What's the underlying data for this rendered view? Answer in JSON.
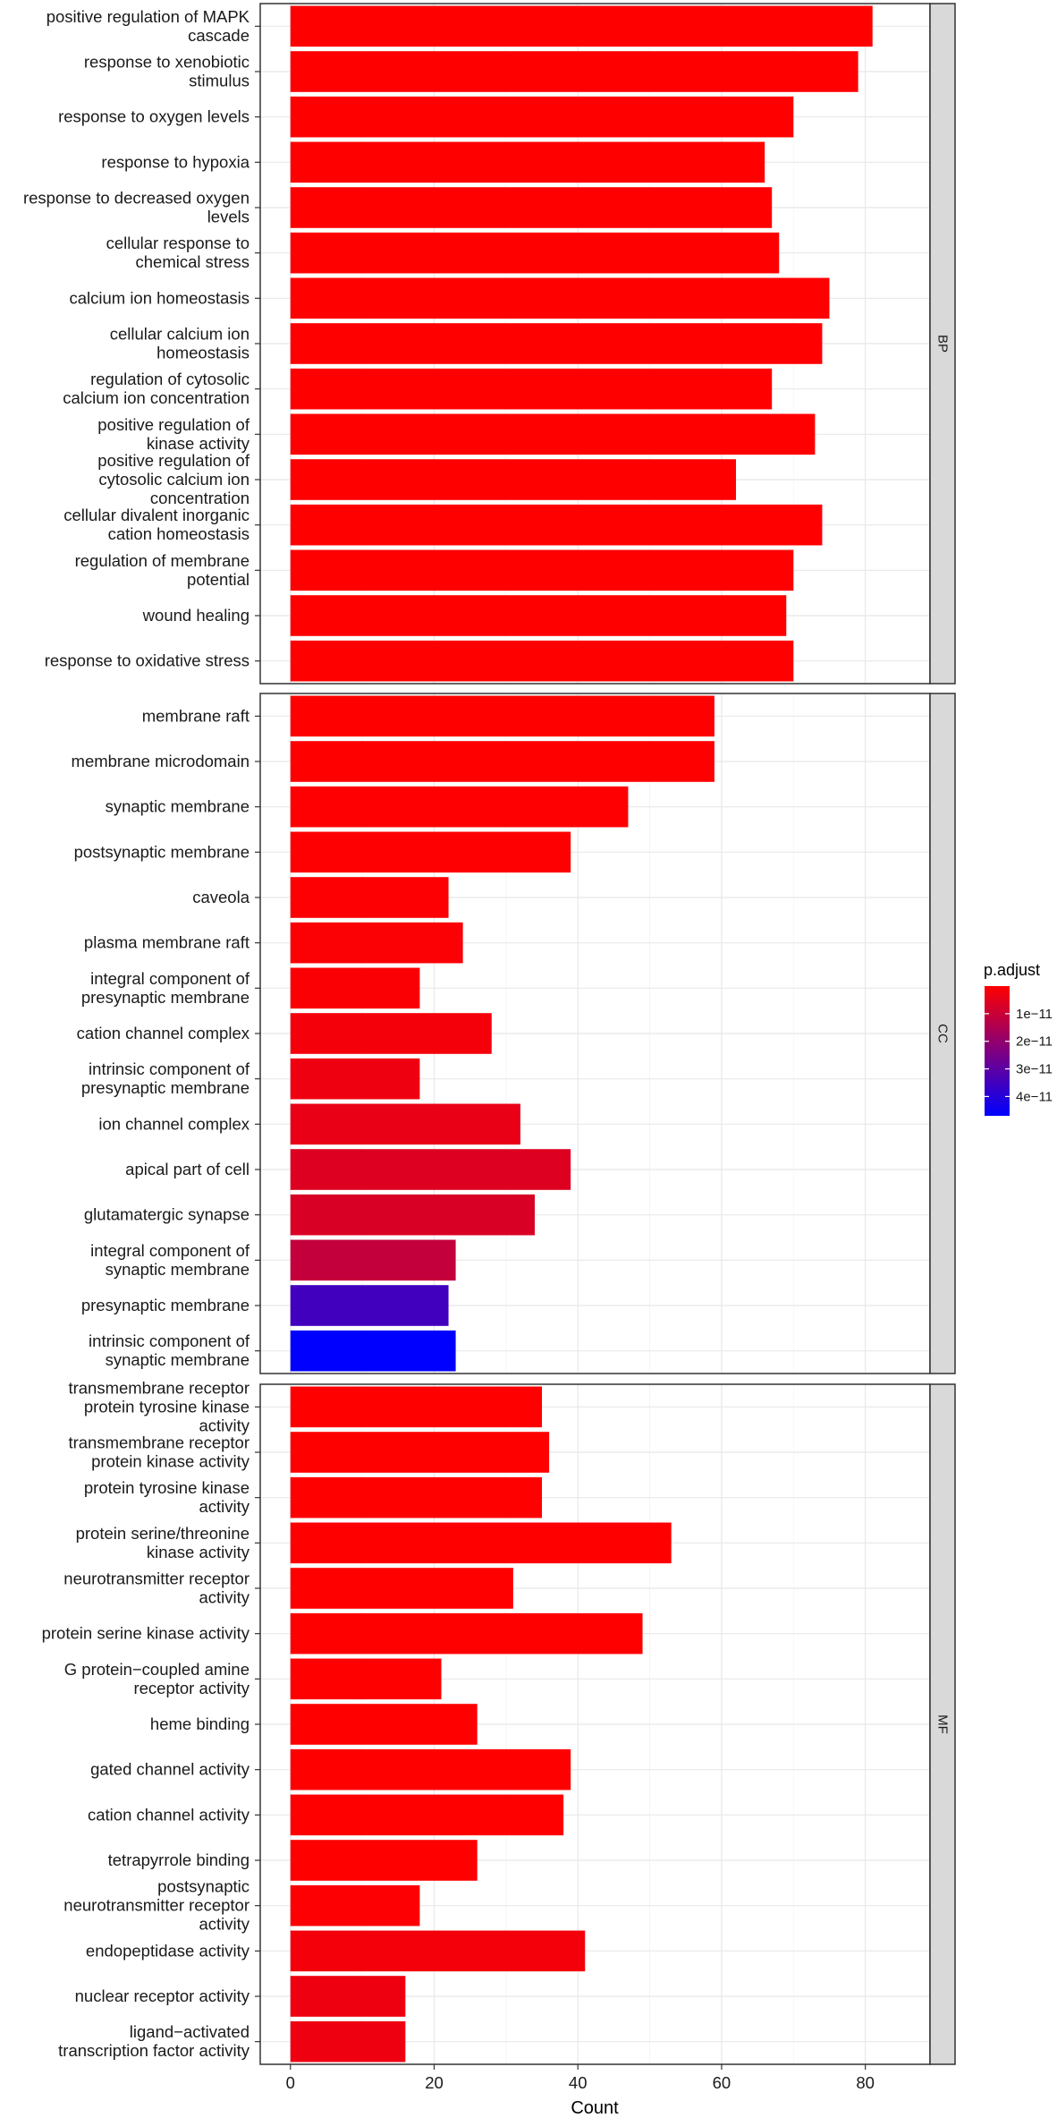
{
  "chart_data": {
    "type": "bar",
    "orientation": "horizontal",
    "title": "",
    "xlabel": "Count",
    "ylabel": "",
    "xlim": [
      -4.2,
      89.0
    ],
    "x_ticks": [
      0,
      20,
      40,
      60,
      80
    ],
    "grid": true,
    "legend": {
      "title": "p.adjust",
      "placement": "right",
      "range": [
        0,
        4.7e-11
      ],
      "ticks": [
        1e-11,
        2e-11,
        3e-11,
        4e-11
      ],
      "tick_labels": [
        "1e−11",
        "2e−11",
        "3e−11",
        "4e−11"
      ],
      "color_low": "#ff0000",
      "color_high": "#0000ff"
    },
    "facets": [
      {
        "name": "BP",
        "terms": [
          {
            "label": [
              "positive regulation of MAPK",
              "cascade"
            ],
            "count": 81,
            "p_adjust": 1e-15
          },
          {
            "label": [
              "response to xenobiotic",
              "stimulus"
            ],
            "count": 79,
            "p_adjust": 1e-15
          },
          {
            "label": [
              "response to oxygen levels"
            ],
            "count": 70,
            "p_adjust": 1e-15
          },
          {
            "label": [
              "response to hypoxia"
            ],
            "count": 66,
            "p_adjust": 1e-15
          },
          {
            "label": [
              "response to decreased oxygen",
              "levels"
            ],
            "count": 67,
            "p_adjust": 1e-15
          },
          {
            "label": [
              "cellular response to",
              "chemical stress"
            ],
            "count": 68,
            "p_adjust": 1e-15
          },
          {
            "label": [
              "calcium ion homeostasis"
            ],
            "count": 75,
            "p_adjust": 1e-15
          },
          {
            "label": [
              "cellular calcium ion",
              "homeostasis"
            ],
            "count": 74,
            "p_adjust": 1e-15
          },
          {
            "label": [
              "regulation of cytosolic",
              "calcium ion concentration"
            ],
            "count": 67,
            "p_adjust": 1e-15
          },
          {
            "label": [
              "positive regulation of",
              "kinase activity"
            ],
            "count": 73,
            "p_adjust": 1e-15
          },
          {
            "label": [
              "positive regulation of",
              "cytosolic calcium ion",
              "concentration"
            ],
            "count": 62,
            "p_adjust": 1e-15
          },
          {
            "label": [
              "cellular divalent inorganic",
              "cation homeostasis"
            ],
            "count": 74,
            "p_adjust": 1e-15
          },
          {
            "label": [
              "regulation of membrane",
              "potential"
            ],
            "count": 70,
            "p_adjust": 1e-15
          },
          {
            "label": [
              "wound healing"
            ],
            "count": 69,
            "p_adjust": 1e-15
          },
          {
            "label": [
              "response to oxidative stress"
            ],
            "count": 70,
            "p_adjust": 1e-15
          }
        ]
      },
      {
        "name": "CC",
        "terms": [
          {
            "label": [
              "membrane raft"
            ],
            "count": 59,
            "p_adjust": 1e-14
          },
          {
            "label": [
              "membrane microdomain"
            ],
            "count": 59,
            "p_adjust": 1e-14
          },
          {
            "label": [
              "synaptic membrane"
            ],
            "count": 47,
            "p_adjust": 1e-13
          },
          {
            "label": [
              "postsynaptic membrane"
            ],
            "count": 39,
            "p_adjust": 2e-13
          },
          {
            "label": [
              "caveola"
            ],
            "count": 22,
            "p_adjust": 5e-13
          },
          {
            "label": [
              "plasma membrane raft"
            ],
            "count": 24,
            "p_adjust": 8e-13
          },
          {
            "label": [
              "integral component of",
              "presynaptic membrane"
            ],
            "count": 18,
            "p_adjust": 1e-12
          },
          {
            "label": [
              "cation channel complex"
            ],
            "count": 28,
            "p_adjust": 2e-12
          },
          {
            "label": [
              "intrinsic component of",
              "presynaptic membrane"
            ],
            "count": 18,
            "p_adjust": 3e-12
          },
          {
            "label": [
              "ion channel complex"
            ],
            "count": 32,
            "p_adjust": 4e-12
          },
          {
            "label": [
              "apical part of cell"
            ],
            "count": 39,
            "p_adjust": 6e-12
          },
          {
            "label": [
              "glutamatergic synapse"
            ],
            "count": 34,
            "p_adjust": 7e-12
          },
          {
            "label": [
              "integral component of",
              "synaptic membrane"
            ],
            "count": 23,
            "p_adjust": 1.1e-11
          },
          {
            "label": [
              "presynaptic membrane"
            ],
            "count": 22,
            "p_adjust": 3.5e-11
          },
          {
            "label": [
              "intrinsic component of",
              "synaptic membrane"
            ],
            "count": 23,
            "p_adjust": 4.7e-11
          }
        ]
      },
      {
        "name": "MF",
        "terms": [
          {
            "label": [
              "transmembrane receptor",
              "protein tyrosine kinase",
              "activity"
            ],
            "count": 35,
            "p_adjust": 1e-14
          },
          {
            "label": [
              "transmembrane receptor",
              "protein kinase activity"
            ],
            "count": 36,
            "p_adjust": 1e-14
          },
          {
            "label": [
              "protein tyrosine kinase",
              "activity"
            ],
            "count": 35,
            "p_adjust": 1e-14
          },
          {
            "label": [
              "protein serine/threonine",
              "kinase activity"
            ],
            "count": 53,
            "p_adjust": 1e-14
          },
          {
            "label": [
              "neurotransmitter receptor",
              "activity"
            ],
            "count": 31,
            "p_adjust": 1e-14
          },
          {
            "label": [
              "protein serine kinase activity"
            ],
            "count": 49,
            "p_adjust": 1e-14
          },
          {
            "label": [
              "G protein−coupled amine",
              "receptor activity"
            ],
            "count": 21,
            "p_adjust": 1e-14
          },
          {
            "label": [
              "heme binding"
            ],
            "count": 26,
            "p_adjust": 1e-14
          },
          {
            "label": [
              "gated channel activity"
            ],
            "count": 39,
            "p_adjust": 1e-14
          },
          {
            "label": [
              "cation channel activity"
            ],
            "count": 38,
            "p_adjust": 1e-14
          },
          {
            "label": [
              "tetrapyrrole binding"
            ],
            "count": 26,
            "p_adjust": 1e-14
          },
          {
            "label": [
              "postsynaptic",
              "neurotransmitter receptor",
              "activity"
            ],
            "count": 18,
            "p_adjust": 5e-13
          },
          {
            "label": [
              "endopeptidase activity"
            ],
            "count": 41,
            "p_adjust": 2e-12
          },
          {
            "label": [
              "nuclear receptor activity"
            ],
            "count": 16,
            "p_adjust": 3e-12
          },
          {
            "label": [
              "ligand−activated",
              "transcription factor activity"
            ],
            "count": 16,
            "p_adjust": 3e-12
          }
        ]
      }
    ]
  }
}
